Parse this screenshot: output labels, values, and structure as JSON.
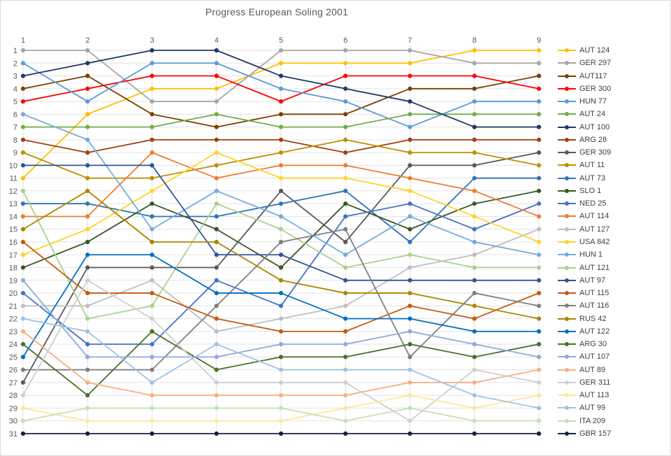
{
  "title": "Progress European Soling 2001",
  "chart_data": {
    "type": "line",
    "title": "Progress European Soling 2001",
    "xlabel": "",
    "ylabel": "",
    "x": [
      1,
      2,
      3,
      4,
      5,
      6,
      7,
      8,
      9
    ],
    "x_ticks": [
      "1",
      "2",
      "3",
      "4",
      "5",
      "6",
      "7",
      "8",
      "9"
    ],
    "y_ticks": [
      "1",
      "2",
      "3",
      "4",
      "5",
      "6",
      "7",
      "8",
      "9",
      "10",
      "11",
      "12",
      "13",
      "14",
      "15",
      "16",
      "17",
      "18",
      "19",
      "20",
      "21",
      "22",
      "23",
      "24",
      "25",
      "26",
      "27",
      "28",
      "29",
      "30",
      "31"
    ],
    "y_axis_inverted": true,
    "ylim": [
      1,
      31
    ],
    "grid": true,
    "legend_position": "right",
    "series": [
      {
        "name": "AUT 124",
        "color": "#FFC000",
        "values": [
          11,
          6,
          4,
          4,
          2,
          2,
          2,
          1,
          1
        ]
      },
      {
        "name": "GER 297",
        "color": "#A6A6A6",
        "values": [
          1,
          1,
          5,
          5,
          1,
          1,
          1,
          2,
          2
        ]
      },
      {
        "name": "AUT117",
        "color": "#7B3F00",
        "values": [
          4,
          3,
          6,
          7,
          6,
          6,
          4,
          4,
          3
        ]
      },
      {
        "name": "GER 300",
        "color": "#FF0000",
        "values": [
          5,
          4,
          3,
          3,
          5,
          3,
          3,
          3,
          4
        ]
      },
      {
        "name": "HUN 77",
        "color": "#5B9BD5",
        "values": [
          2,
          5,
          2,
          2,
          4,
          5,
          7,
          5,
          5
        ]
      },
      {
        "name": "AUT 24",
        "color": "#70AD47",
        "values": [
          7,
          7,
          7,
          6,
          7,
          7,
          6,
          6,
          6
        ]
      },
      {
        "name": "AUT 100",
        "color": "#203864",
        "values": [
          3,
          2,
          1,
          1,
          3,
          4,
          5,
          7,
          7
        ]
      },
      {
        "name": "ARG 28",
        "color": "#A33F0F",
        "values": [
          8,
          9,
          8,
          8,
          8,
          9,
          8,
          8,
          8
        ]
      },
      {
        "name": "GER 309",
        "color": "#595959",
        "values": [
          27,
          18,
          18,
          18,
          12,
          16,
          10,
          10,
          9
        ]
      },
      {
        "name": "AUT 11",
        "color": "#BF8F00",
        "values": [
          9,
          11,
          11,
          10,
          9,
          8,
          9,
          9,
          10
        ]
      },
      {
        "name": "AUT 73",
        "color": "#2E75B6",
        "values": [
          13,
          13,
          14,
          14,
          13,
          12,
          16,
          11,
          11
        ]
      },
      {
        "name": "SLO 1",
        "color": "#385723",
        "values": [
          18,
          16,
          13,
          15,
          18,
          13,
          15,
          13,
          12
        ]
      },
      {
        "name": "NED 25",
        "color": "#4472C4",
        "values": [
          20,
          24,
          24,
          19,
          21,
          14,
          13,
          15,
          13
        ]
      },
      {
        "name": "AUT 114",
        "color": "#ED7D31",
        "values": [
          14,
          14,
          9,
          11,
          10,
          10,
          11,
          12,
          14
        ]
      },
      {
        "name": "AUT 127",
        "color": "#BFBFBF",
        "values": [
          21,
          21,
          19,
          23,
          22,
          21,
          18,
          17,
          15
        ]
      },
      {
        "name": "USA 842",
        "color": "#FFD42B",
        "values": [
          17,
          15,
          12,
          9,
          11,
          11,
          12,
          14,
          16
        ]
      },
      {
        "name": "HUN 1",
        "color": "#74ABDF",
        "values": [
          6,
          8,
          15,
          12,
          14,
          17,
          14,
          16,
          17
        ]
      },
      {
        "name": "AUT 121",
        "color": "#A9D18E",
        "values": [
          12,
          22,
          21,
          13,
          15,
          18,
          17,
          18,
          18
        ]
      },
      {
        "name": "AUT 97",
        "color": "#2F5597",
        "values": [
          10,
          10,
          10,
          17,
          17,
          19,
          19,
          19,
          19
        ]
      },
      {
        "name": "AUT 115",
        "color": "#C55A11",
        "values": [
          16,
          20,
          20,
          22,
          23,
          23,
          21,
          22,
          20
        ]
      },
      {
        "name": "AUT 116",
        "color": "#7F7F7F",
        "values": [
          26,
          26,
          26,
          21,
          16,
          15,
          25,
          20,
          21
        ]
      },
      {
        "name": "RUS 42",
        "color": "#A98600",
        "values": [
          15,
          12,
          16,
          16,
          19,
          20,
          20,
          21,
          22
        ]
      },
      {
        "name": "AUT 122",
        "color": "#0070C0",
        "values": [
          25,
          17,
          17,
          20,
          20,
          22,
          22,
          23,
          23
        ]
      },
      {
        "name": "ARG 30",
        "color": "#4A6F2B",
        "values": [
          24,
          28,
          23,
          26,
          25,
          25,
          24,
          25,
          24
        ]
      },
      {
        "name": "AUT 107",
        "color": "#8FAADC",
        "values": [
          19,
          25,
          25,
          25,
          24,
          24,
          23,
          24,
          25
        ]
      },
      {
        "name": "AUT 89",
        "color": "#F4B183",
        "values": [
          23,
          27,
          28,
          28,
          28,
          28,
          27,
          27,
          26
        ]
      },
      {
        "name": "GER 311",
        "color": "#D0CECE",
        "values": [
          28,
          19,
          22,
          27,
          27,
          27,
          30,
          26,
          27
        ]
      },
      {
        "name": "AUT 113",
        "color": "#FFE699",
        "values": [
          29,
          30,
          30,
          30,
          30,
          29,
          28,
          29,
          28
        ]
      },
      {
        "name": "AUT 99",
        "color": "#9DC3E6",
        "values": [
          22,
          23,
          27,
          24,
          26,
          26,
          26,
          28,
          29
        ]
      },
      {
        "name": "ITA 209",
        "color": "#C5E0B4",
        "values": [
          30,
          29,
          29,
          29,
          29,
          30,
          29,
          30,
          30
        ]
      },
      {
        "name": "GBR 157",
        "color": "#152238",
        "values": [
          31,
          31,
          31,
          31,
          31,
          31,
          31,
          31,
          31
        ]
      }
    ]
  },
  "style_colors": {
    "gridline": "#E3E3E3",
    "tick_label": "#595959",
    "legend_text": "#404040",
    "border": "#D9D9D9"
  }
}
